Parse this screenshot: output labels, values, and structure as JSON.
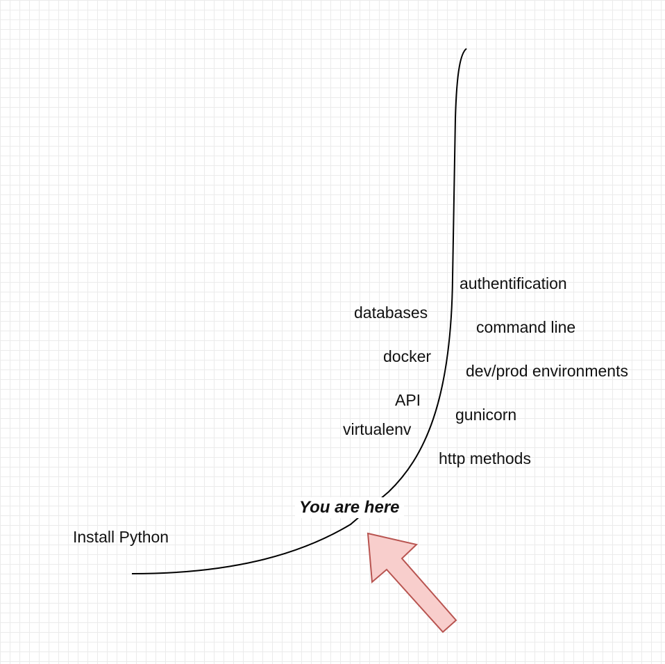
{
  "diagram": {
    "start_label": "Install Python",
    "marker_label": "You are here",
    "topics_left": [
      "databases",
      "docker",
      "API",
      "virtualenv"
    ],
    "topics_right": [
      "authentification",
      "command line",
      "dev/prod environments",
      "gunicorn",
      "http methods"
    ]
  },
  "colors": {
    "curve": "#000000",
    "arrow_fill": "#f8cecc",
    "arrow_stroke": "#b85450",
    "grid": "#ebebeb"
  }
}
